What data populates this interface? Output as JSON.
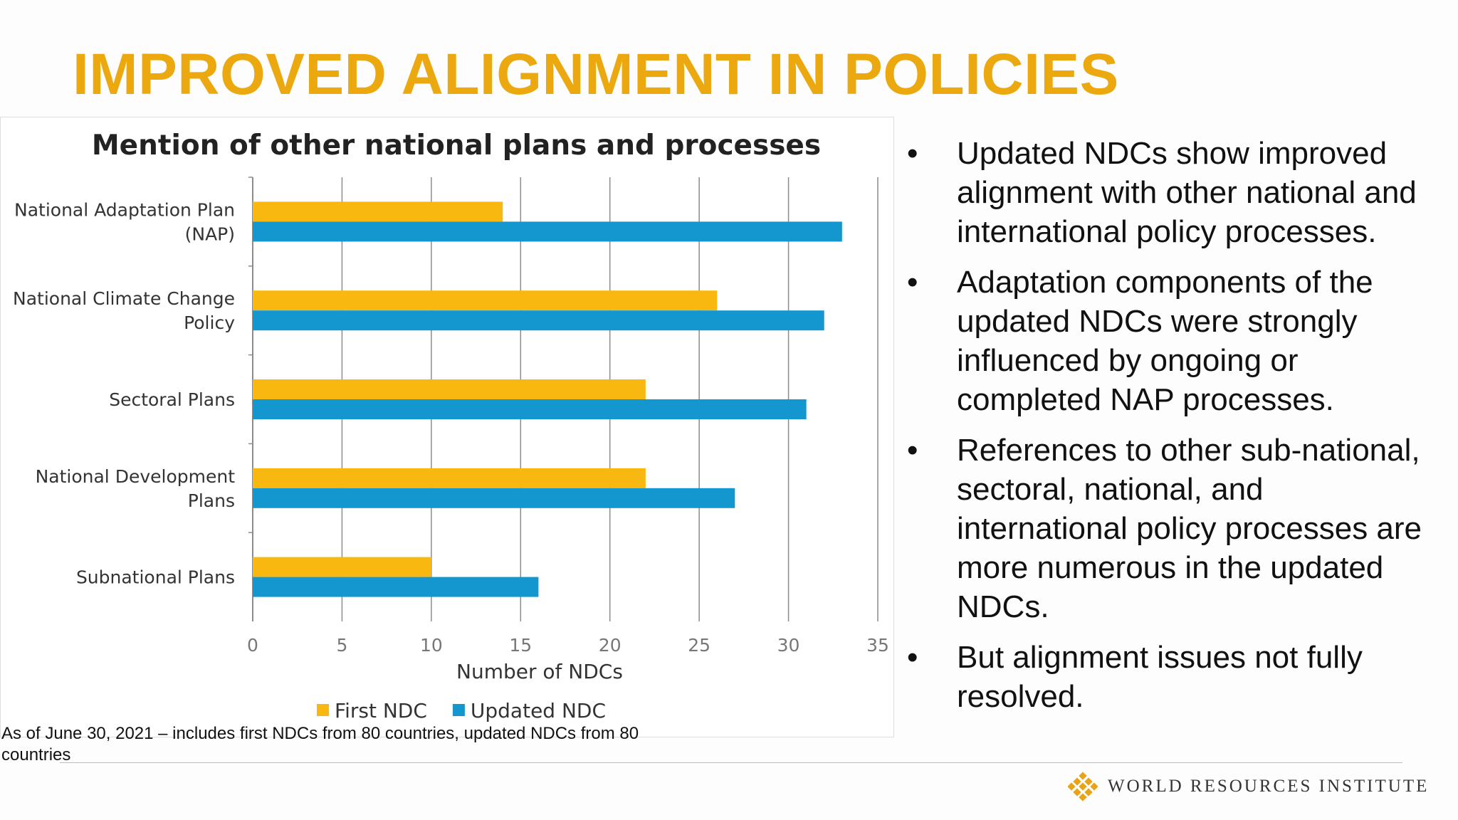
{
  "slide": {
    "title": "IMPROVED ALIGNMENT IN POLICIES",
    "footnote_lines": [
      "As of June 30, 2021 – includes first NDCs from 80 countries, updated NDCs from 80",
      "countries"
    ],
    "bullets": [
      "Updated NDCs show improved alignment with other national and international policy processes.",
      "Adaptation components of the updated NDCs were strongly influenced by ongoing or completed NAP processes.",
      "References to other sub-national, sectoral, national, and international policy processes are more numerous in the updated NDCs.",
      "But alignment issues not fully resolved."
    ],
    "bullet_symbol": "•",
    "logo_text": "WORLD RESOURCES INSTITUTE",
    "logo_icon": "wri-mosaic-logo-icon",
    "title_color": "#eba90f"
  },
  "chart_data": {
    "type": "bar",
    "orientation": "horizontal",
    "title": "Mention of other national plans and processes",
    "categories": [
      [
        "National Adaptation Plan",
        "(NAP)"
      ],
      [
        "National Climate Change",
        "Policy"
      ],
      [
        "Sectoral Plans"
      ],
      [
        "National Development",
        "Plans"
      ],
      [
        "Subnational Plans"
      ]
    ],
    "series": [
      {
        "name": "First NDC",
        "color": "#f9b80f",
        "values": [
          14,
          26,
          22,
          22,
          10
        ]
      },
      {
        "name": "Updated NDC",
        "color": "#1496cf",
        "values": [
          33,
          32,
          31,
          27,
          16
        ]
      }
    ],
    "xlabel": "Number of NDCs",
    "xlim": [
      0,
      35
    ],
    "xticks": [
      0,
      5,
      10,
      15,
      20,
      25,
      30,
      35
    ],
    "grid": "vertical",
    "legend": "bottom"
  }
}
